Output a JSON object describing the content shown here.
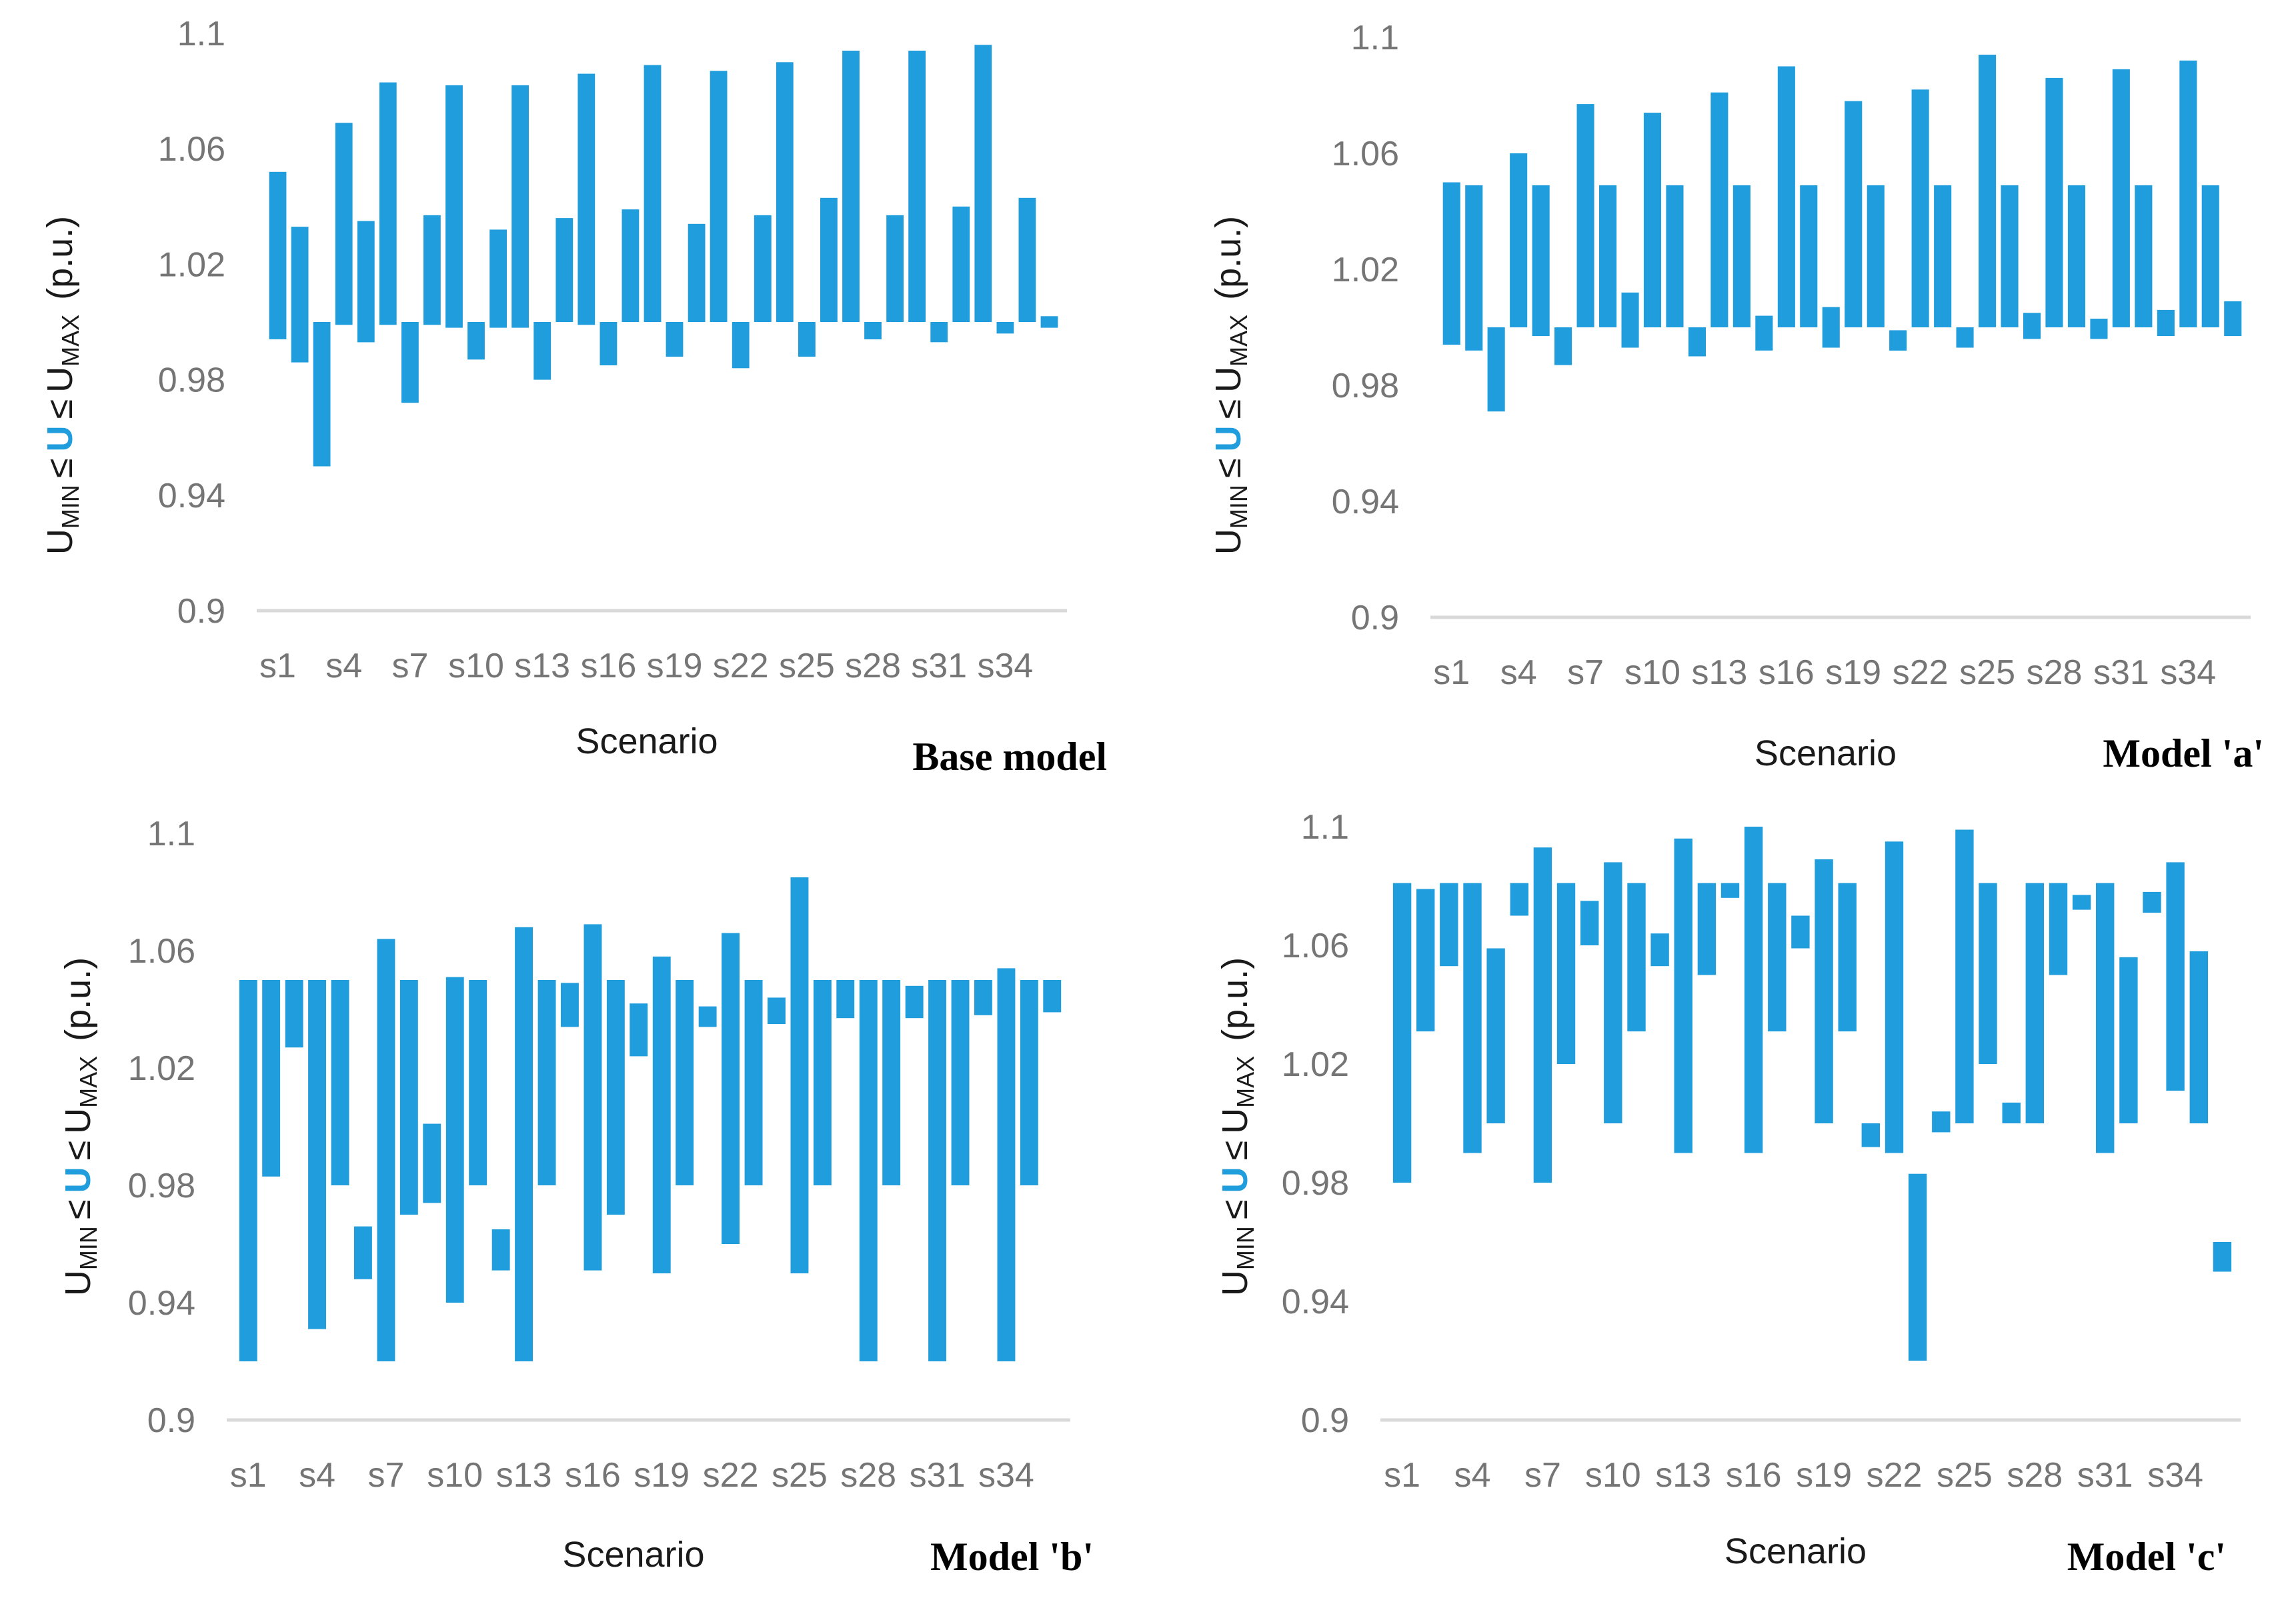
{
  "colors": {
    "bar": "#1f9ddc",
    "axis": "#d9d9d9",
    "tick_text": "#757575"
  },
  "ylabel_parts": {
    "u_main": "U",
    "min_sub": "MIN",
    "le1": "≤",
    "u_mid": "U",
    "le2": "≤",
    "max_sub": "MAX",
    "unit": "(p.u.)"
  },
  "chart_data": [
    {
      "type": "bar",
      "subtype": "floating-range",
      "title": "Base model",
      "xlabel": "Scenario",
      "ylim": [
        0.9,
        1.1
      ],
      "yticks": [
        "1.1",
        "1.06",
        "1.02",
        "0.98",
        "0.94",
        "0.9"
      ],
      "xtick_labels": [
        "s1",
        "s4",
        "s7",
        "s10",
        "s13",
        "s16",
        "s19",
        "s22",
        "s25",
        "s28",
        "s31",
        "s34"
      ],
      "categories": [
        "s1",
        "s2",
        "s3",
        "s4",
        "s5",
        "s6",
        "s7",
        "s8",
        "s9",
        "s10",
        "s11",
        "s12",
        "s13",
        "s14",
        "s15",
        "s16",
        "s17",
        "s18",
        "s19",
        "s20",
        "s21",
        "s22",
        "s23",
        "s24",
        "s25",
        "s26",
        "s27",
        "s28",
        "s29",
        "s30",
        "s31",
        "s32",
        "s33",
        "s34",
        "s35",
        "s36"
      ],
      "ranges": [
        [
          0.994,
          1.052
        ],
        [
          0.986,
          1.033
        ],
        [
          0.95,
          1.0
        ],
        [
          0.999,
          1.069
        ],
        [
          0.993,
          1.035
        ],
        [
          0.999,
          1.083
        ],
        [
          0.972,
          1.0
        ],
        [
          0.999,
          1.037
        ],
        [
          0.998,
          1.082
        ],
        [
          0.987,
          1.0
        ],
        [
          0.998,
          1.032
        ],
        [
          0.998,
          1.082
        ],
        [
          0.98,
          1.0
        ],
        [
          1.0,
          1.036
        ],
        [
          0.999,
          1.086
        ],
        [
          0.985,
          1.0
        ],
        [
          1.0,
          1.039
        ],
        [
          1.0,
          1.089
        ],
        [
          0.988,
          1.0
        ],
        [
          1.0,
          1.034
        ],
        [
          1.0,
          1.087
        ],
        [
          0.984,
          1.0
        ],
        [
          1.0,
          1.037
        ],
        [
          1.0,
          1.09
        ],
        [
          0.988,
          1.0
        ],
        [
          1.0,
          1.043
        ],
        [
          1.0,
          1.094
        ],
        [
          0.994,
          1.0
        ],
        [
          1.0,
          1.037
        ],
        [
          1.0,
          1.094
        ],
        [
          0.993,
          1.0
        ],
        [
          1.0,
          1.04
        ],
        [
          1.0,
          1.096
        ],
        [
          0.996,
          1.0
        ],
        [
          1.0,
          1.043
        ],
        [
          0.998,
          1.002
        ]
      ]
    },
    {
      "type": "bar",
      "subtype": "floating-range",
      "title": "Model 'a'",
      "xlabel": "Scenario",
      "ylim": [
        0.9,
        1.1
      ],
      "yticks": [
        "1.1",
        "1.06",
        "1.02",
        "0.98",
        "0.94",
        "0.9"
      ],
      "xtick_labels": [
        "s1",
        "s4",
        "s7",
        "s10",
        "s13",
        "s16",
        "s19",
        "s22",
        "s25",
        "s28",
        "s31",
        "s34"
      ],
      "categories": [
        "s1",
        "s2",
        "s3",
        "s4",
        "s5",
        "s6",
        "s7",
        "s8",
        "s9",
        "s10",
        "s11",
        "s12",
        "s13",
        "s14",
        "s15",
        "s16",
        "s17",
        "s18",
        "s19",
        "s20",
        "s21",
        "s22",
        "s23",
        "s24",
        "s25",
        "s26",
        "s27",
        "s28",
        "s29",
        "s30",
        "s31",
        "s32",
        "s33",
        "s34",
        "s35",
        "s36"
      ],
      "ranges": [
        [
          0.994,
          1.05
        ],
        [
          0.992,
          1.049
        ],
        [
          0.971,
          1.0
        ],
        [
          1.0,
          1.06
        ],
        [
          0.997,
          1.049
        ],
        [
          0.987,
          1.0
        ],
        [
          1.0,
          1.077
        ],
        [
          1.0,
          1.049
        ],
        [
          0.993,
          1.012
        ],
        [
          1.0,
          1.074
        ],
        [
          1.0,
          1.049
        ],
        [
          0.99,
          1.0
        ],
        [
          1.0,
          1.081
        ],
        [
          1.0,
          1.049
        ],
        [
          0.992,
          1.004
        ],
        [
          1.0,
          1.09
        ],
        [
          1.0,
          1.049
        ],
        [
          0.993,
          1.007
        ],
        [
          1.0,
          1.078
        ],
        [
          1.0,
          1.049
        ],
        [
          0.992,
          0.999
        ],
        [
          1.0,
          1.082
        ],
        [
          1.0,
          1.049
        ],
        [
          0.993,
          1.0
        ],
        [
          1.0,
          1.094
        ],
        [
          1.0,
          1.049
        ],
        [
          0.996,
          1.005
        ],
        [
          1.0,
          1.086
        ],
        [
          1.0,
          1.049
        ],
        [
          0.996,
          1.003
        ],
        [
          1.0,
          1.089
        ],
        [
          1.0,
          1.049
        ],
        [
          0.997,
          1.006
        ],
        [
          1.0,
          1.092
        ],
        [
          1.0,
          1.049
        ],
        [
          0.997,
          1.009
        ]
      ]
    },
    {
      "type": "bar",
      "subtype": "floating-range",
      "title": "Model 'b'",
      "xlabel": "Scenario",
      "ylim": [
        0.9,
        1.1
      ],
      "yticks": [
        "1.1",
        "1.06",
        "1.02",
        "0.98",
        "0.94",
        "0.9"
      ],
      "xtick_labels": [
        "s1",
        "s4",
        "s7",
        "s10",
        "s13",
        "s16",
        "s19",
        "s22",
        "s25",
        "s28",
        "s31",
        "s34"
      ],
      "categories": [
        "s1",
        "s2",
        "s3",
        "s4",
        "s5",
        "s6",
        "s7",
        "s8",
        "s9",
        "s10",
        "s11",
        "s12",
        "s13",
        "s14",
        "s15",
        "s16",
        "s17",
        "s18",
        "s19",
        "s20",
        "s21",
        "s22",
        "s23",
        "s24",
        "s25",
        "s26",
        "s27",
        "s28",
        "s29",
        "s30",
        "s31",
        "s32",
        "s33",
        "s34",
        "s35",
        "s36"
      ],
      "ranges": [
        [
          0.92,
          1.05
        ],
        [
          0.983,
          1.05
        ],
        [
          1.027,
          1.05
        ],
        [
          0.931,
          1.05
        ],
        [
          0.98,
          1.05
        ],
        [
          0.948,
          0.966
        ],
        [
          0.92,
          1.064
        ],
        [
          0.97,
          1.05
        ],
        [
          0.974,
          1.001
        ],
        [
          0.94,
          1.051
        ],
        [
          0.98,
          1.05
        ],
        [
          0.951,
          0.965
        ],
        [
          0.92,
          1.068
        ],
        [
          0.98,
          1.05
        ],
        [
          1.034,
          1.049
        ],
        [
          0.951,
          1.069
        ],
        [
          0.97,
          1.05
        ],
        [
          1.024,
          1.042
        ],
        [
          0.95,
          1.058
        ],
        [
          0.98,
          1.05
        ],
        [
          1.034,
          1.041
        ],
        [
          0.96,
          1.066
        ],
        [
          0.98,
          1.05
        ],
        [
          1.035,
          1.044
        ],
        [
          0.95,
          1.085
        ],
        [
          0.98,
          1.05
        ],
        [
          1.037,
          1.05
        ],
        [
          0.92,
          1.05
        ],
        [
          0.98,
          1.05
        ],
        [
          1.037,
          1.048
        ],
        [
          0.92,
          1.05
        ],
        [
          0.98,
          1.05
        ],
        [
          1.038,
          1.05
        ],
        [
          0.92,
          1.054
        ],
        [
          0.98,
          1.05
        ],
        [
          1.039,
          1.05
        ]
      ]
    },
    {
      "type": "bar",
      "subtype": "floating-range",
      "title": "Model 'c'",
      "xlabel": "Scenario",
      "ylim": [
        0.9,
        1.1
      ],
      "yticks": [
        "1.1",
        "1.06",
        "1.02",
        "0.98",
        "0.94",
        "0.9"
      ],
      "xtick_labels": [
        "s1",
        "s4",
        "s7",
        "s10",
        "s13",
        "s16",
        "s19",
        "s22",
        "s25",
        "s28",
        "s31",
        "s34"
      ],
      "categories": [
        "s1",
        "s2",
        "s3",
        "s4",
        "s5",
        "s6",
        "s7",
        "s8",
        "s9",
        "s10",
        "s11",
        "s12",
        "s13",
        "s14",
        "s15",
        "s16",
        "s17",
        "s18",
        "s19",
        "s20",
        "s21",
        "s22",
        "s23",
        "s24",
        "s25",
        "s26",
        "s27",
        "s28",
        "s29",
        "s30",
        "s31",
        "s32",
        "s33",
        "s34",
        "s35",
        "s36"
      ],
      "ranges": [
        [
          0.98,
          1.081
        ],
        [
          1.031,
          1.079
        ],
        [
          1.053,
          1.081
        ],
        [
          0.99,
          1.081
        ],
        [
          1.0,
          1.059
        ],
        [
          1.07,
          1.081
        ],
        [
          0.98,
          1.093
        ],
        [
          1.02,
          1.081
        ],
        [
          1.06,
          1.075
        ],
        [
          1.0,
          1.088
        ],
        [
          1.031,
          1.081
        ],
        [
          1.053,
          1.064
        ],
        [
          0.99,
          1.096
        ],
        [
          1.05,
          1.081
        ],
        [
          1.076,
          1.081
        ],
        [
          0.99,
          1.1
        ],
        [
          1.031,
          1.081
        ],
        [
          1.059,
          1.07
        ],
        [
          1.0,
          1.089
        ],
        [
          1.031,
          1.081
        ],
        [
          0.992,
          1.0
        ],
        [
          0.99,
          1.095
        ],
        [
          0.92,
          0.983
        ],
        [
          0.997,
          1.004
        ],
        [
          1.0,
          1.099
        ],
        [
          1.02,
          1.081
        ],
        [
          1.0,
          1.007
        ],
        [
          1.0,
          1.081
        ],
        [
          1.05,
          1.081
        ],
        [
          1.072,
          1.077
        ],
        [
          0.99,
          1.081
        ],
        [
          1.0,
          1.056
        ],
        [
          1.071,
          1.078
        ],
        [
          1.011,
          1.088
        ],
        [
          1.0,
          1.058
        ],
        [
          0.95,
          0.96
        ]
      ]
    }
  ]
}
